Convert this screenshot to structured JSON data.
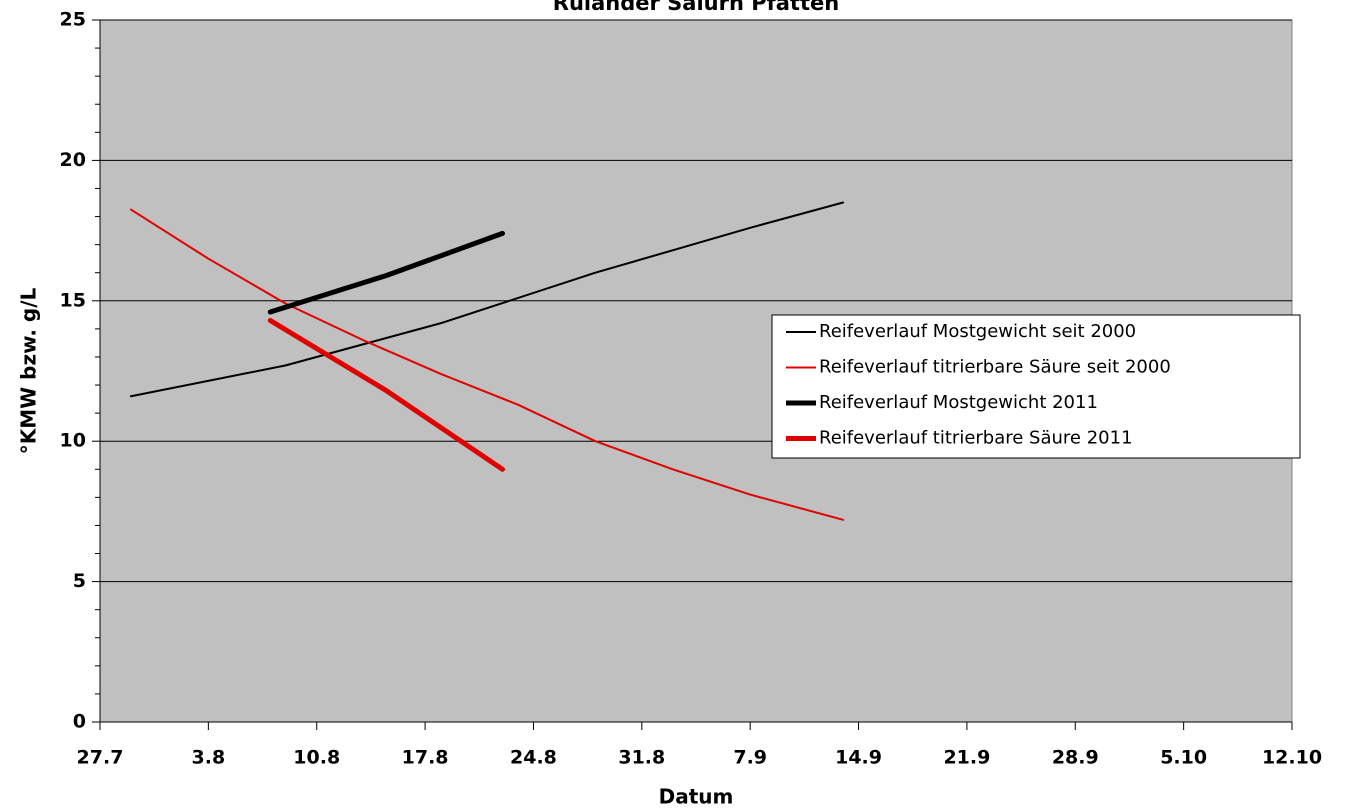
{
  "chart_data": {
    "type": "line",
    "title": "Ruländer Salurn Pfatten",
    "x_label": "Datum",
    "y_label": "°KMW bzw. g/L",
    "xlim": [
      208,
      285
    ],
    "xticks": [
      {
        "value": 208,
        "label": "27.7"
      },
      {
        "value": 215,
        "label": "3.8"
      },
      {
        "value": 222,
        "label": "10.8"
      },
      {
        "value": 229,
        "label": "17.8"
      },
      {
        "value": 236,
        "label": "24.8"
      },
      {
        "value": 243,
        "label": "31.8"
      },
      {
        "value": 250,
        "label": "7.9"
      },
      {
        "value": 257,
        "label": "14.9"
      },
      {
        "value": 264,
        "label": "21.9"
      },
      {
        "value": 271,
        "label": "28.9"
      },
      {
        "value": 278,
        "label": "5.10"
      },
      {
        "value": 285,
        "label": "12.10"
      }
    ],
    "ylim": [
      0,
      25
    ],
    "yticks": [
      0,
      5,
      10,
      15,
      20,
      25
    ],
    "yminorticks": [
      1,
      2,
      3,
      4,
      6,
      7,
      8,
      9,
      11,
      12,
      13,
      14,
      16,
      17,
      18,
      19,
      21,
      22,
      23,
      24
    ],
    "grid": true,
    "background": "#c0c0c0",
    "series": [
      {
        "name": "Reifeverlauf Mostgewicht seit 2000",
        "color": "#000000",
        "width": 2,
        "x": [
          210,
          220,
          230,
          240,
          250,
          256
        ],
        "values": [
          11.6,
          12.7,
          14.2,
          16.0,
          17.6,
          18.5
        ]
      },
      {
        "name": "Reifeverlauf titrierbare Säure seit 2000",
        "color": "#e00000",
        "width": 2,
        "x": [
          210,
          215,
          220,
          225,
          230,
          235,
          240,
          245,
          250,
          256
        ],
        "values": [
          18.25,
          16.5,
          14.9,
          13.6,
          12.4,
          11.3,
          10.0,
          9.0,
          8.1,
          7.2
        ]
      },
      {
        "name": "Reifeverlauf Mostgewicht 2011",
        "color": "#000000",
        "width": 5,
        "x": [
          219,
          226.5,
          234
        ],
        "values": [
          14.6,
          15.9,
          17.4
        ]
      },
      {
        "name": "Reifeverlauf titrierbare Säure 2011",
        "color": "#e00000",
        "width": 5,
        "x": [
          219,
          226.5,
          234
        ],
        "values": [
          14.3,
          11.8,
          9.0
        ]
      }
    ]
  }
}
